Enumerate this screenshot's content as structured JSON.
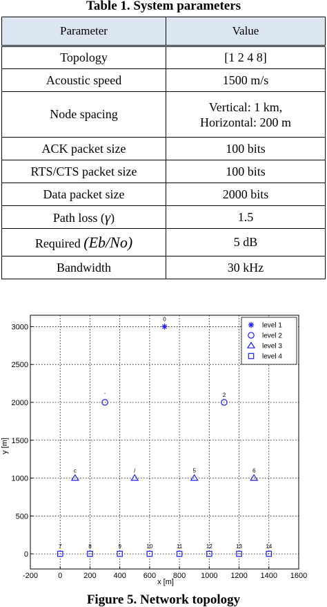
{
  "table": {
    "title": "Table 1. System parameters",
    "headers": [
      "Parameter",
      "Value"
    ],
    "rows": [
      {
        "param": "Topology",
        "value": "[1 2 4 8]"
      },
      {
        "param": "Acoustic speed",
        "value": "1500 m/s"
      },
      {
        "param": "Node spacing",
        "value": "Vertical: 1 km,",
        "value2": "Horizontal: 200 m"
      },
      {
        "param": "ACK packet size",
        "value": "100 bits"
      },
      {
        "param": "RTS/CTS packet size",
        "value": "100 bits"
      },
      {
        "param": "Data packet size",
        "value": "2000 bits"
      },
      {
        "param": "Path loss (",
        "param_symbol": "γ",
        "param_end": ")",
        "value": "1.5"
      },
      {
        "param": "Required",
        "param_formula": "(Eb/No)",
        "value": "5 dB"
      },
      {
        "param": "Bandwidth",
        "value": "30 kHz"
      }
    ]
  },
  "chart_data": {
    "type": "scatter",
    "xlabel": "x [m]",
    "ylabel": "y [m]",
    "xlim": [
      -200,
      1600
    ],
    "ylim": [
      -200,
      3150
    ],
    "xticks": [
      -200,
      0,
      200,
      400,
      600,
      800,
      1000,
      1200,
      1400,
      1600
    ],
    "yticks": [
      0,
      500,
      1000,
      1500,
      2000,
      2500,
      3000
    ],
    "grid": true,
    "legend_position": "top-right",
    "color": "#1a1aff",
    "series": [
      {
        "name": "level 1",
        "marker": "star",
        "points": [
          {
            "x": 700,
            "y": 3000,
            "label": "0"
          }
        ]
      },
      {
        "name": "level 2",
        "marker": "circle",
        "points": [
          {
            "x": 300,
            "y": 2000,
            "label": "'"
          },
          {
            "x": 1100,
            "y": 2000,
            "label": "2"
          }
        ]
      },
      {
        "name": "level 3",
        "marker": "triangle",
        "points": [
          {
            "x": 100,
            "y": 1000,
            "label": "c"
          },
          {
            "x": 500,
            "y": 1000,
            "label": "/"
          },
          {
            "x": 900,
            "y": 1000,
            "label": "5"
          },
          {
            "x": 1300,
            "y": 1000,
            "label": "6"
          }
        ]
      },
      {
        "name": "level 4",
        "marker": "square",
        "points": [
          {
            "x": 0,
            "y": 0,
            "label": "7"
          },
          {
            "x": 200,
            "y": 0,
            "label": "8"
          },
          {
            "x": 400,
            "y": 0,
            "label": "9"
          },
          {
            "x": 600,
            "y": 0,
            "label": "10"
          },
          {
            "x": 800,
            "y": 0,
            "label": "11"
          },
          {
            "x": 1000,
            "y": 0,
            "label": "12"
          },
          {
            "x": 1200,
            "y": 0,
            "label": "13"
          },
          {
            "x": 1400,
            "y": 0,
            "label": "14"
          }
        ]
      }
    ]
  },
  "figure": {
    "caption": "Figure 5. Network topology"
  }
}
